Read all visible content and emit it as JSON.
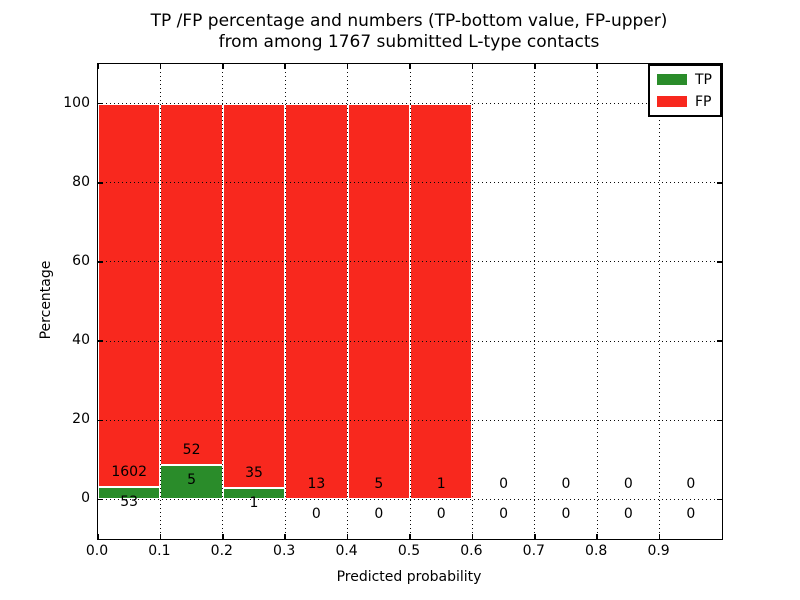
{
  "title": {
    "line1": "TP /FP percentage and numbers (TP-bottom value, FP-upper)",
    "line2": "from among 1767 submitted L-type contacts"
  },
  "axes": {
    "xlabel": "Predicted probability",
    "ylabel": "Percentage",
    "xticks": [
      "0.0",
      "0.1",
      "0.2",
      "0.3",
      "0.4",
      "0.5",
      "0.6",
      "0.7",
      "0.8",
      "0.9"
    ],
    "yticks": [
      0,
      20,
      40,
      60,
      80,
      100
    ],
    "xlim": [
      0.0,
      1.0
    ],
    "ylim": [
      -10,
      110
    ],
    "grid": "dotted"
  },
  "legend": {
    "position": "upper right",
    "items": [
      {
        "label": "TP",
        "color": "#2a8c2a"
      },
      {
        "label": "FP",
        "color": "#f8281e"
      }
    ]
  },
  "colors": {
    "tp": "#2a8c2a",
    "fp": "#f8281e",
    "grid": "#0a0a0a",
    "text": "#000000",
    "background": "#ffffff",
    "bar_edge": "#ffffff"
  },
  "chart_data": {
    "type": "bar",
    "stacked": true,
    "bin_width": 0.1,
    "total_contacts": 1767,
    "title": "TP /FP percentage and numbers (TP-bottom value, FP-upper) from among 1767 submitted L-type contacts",
    "xlabel": "Predicted probability",
    "ylabel": "Percentage",
    "categories": [
      "0.0-0.1",
      "0.1-0.2",
      "0.2-0.3",
      "0.3-0.4",
      "0.4-0.5",
      "0.5-0.6",
      "0.6-0.7",
      "0.7-0.8",
      "0.8-0.9",
      "0.9-1.0"
    ],
    "series": [
      {
        "name": "TP",
        "counts": [
          53,
          5,
          1,
          0,
          0,
          0,
          0,
          0,
          0,
          0
        ]
      },
      {
        "name": "FP",
        "counts": [
          1602,
          52,
          35,
          13,
          5,
          1,
          0,
          0,
          0,
          0
        ]
      }
    ],
    "bars": [
      {
        "bin_start": 0.0,
        "bin_end": 0.1,
        "tp": 53,
        "fp": 1602,
        "tp_pct": 3.2,
        "fp_pct": 96.8
      },
      {
        "bin_start": 0.1,
        "bin_end": 0.2,
        "tp": 5,
        "fp": 52,
        "tp_pct": 8.8,
        "fp_pct": 91.2
      },
      {
        "bin_start": 0.2,
        "bin_end": 0.3,
        "tp": 1,
        "fp": 35,
        "tp_pct": 2.8,
        "fp_pct": 97.2
      },
      {
        "bin_start": 0.3,
        "bin_end": 0.4,
        "tp": 0,
        "fp": 13,
        "tp_pct": 0,
        "fp_pct": 100
      },
      {
        "bin_start": 0.4,
        "bin_end": 0.5,
        "tp": 0,
        "fp": 5,
        "tp_pct": 0,
        "fp_pct": 100
      },
      {
        "bin_start": 0.5,
        "bin_end": 0.6,
        "tp": 0,
        "fp": 1,
        "tp_pct": 0,
        "fp_pct": 100
      },
      {
        "bin_start": 0.6,
        "bin_end": 0.7,
        "tp": 0,
        "fp": 0,
        "tp_pct": 0,
        "fp_pct": 0
      },
      {
        "bin_start": 0.7,
        "bin_end": 0.8,
        "tp": 0,
        "fp": 0,
        "tp_pct": 0,
        "fp_pct": 0
      },
      {
        "bin_start": 0.8,
        "bin_end": 0.9,
        "tp": 0,
        "fp": 0,
        "tp_pct": 0,
        "fp_pct": 0
      },
      {
        "bin_start": 0.9,
        "bin_end": 1.0,
        "tp": 0,
        "fp": 0,
        "tp_pct": 0,
        "fp_pct": 0
      }
    ]
  }
}
